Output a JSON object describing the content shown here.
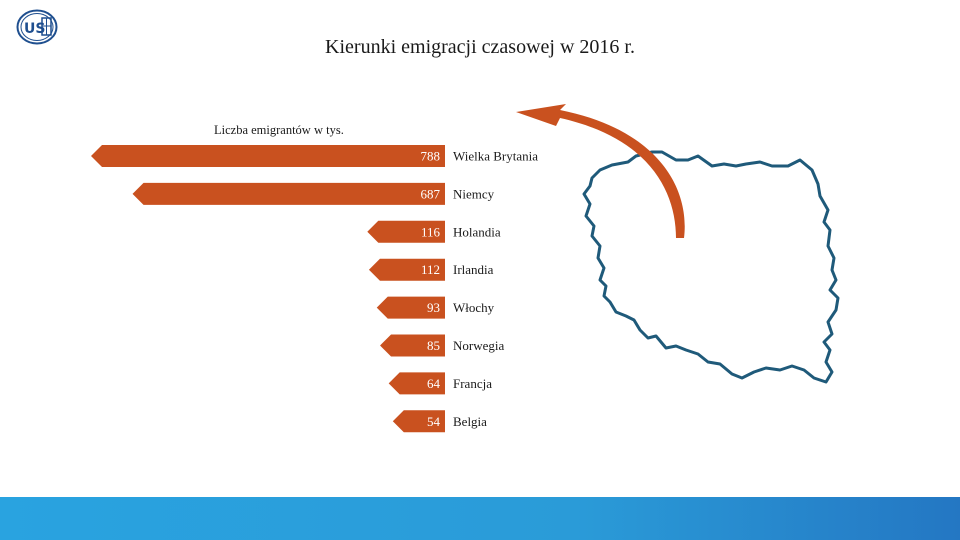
{
  "logo": {
    "name": "us-logo-icon",
    "color": "#1f4f8f"
  },
  "title": "Kierunki emigracji czasowej w 2016 r.",
  "chart_data": {
    "type": "bar",
    "orientation": "horizontal",
    "title": "Kierunki emigracji czasowej w 2016 r.",
    "unit_label": "Liczba emigrantów w tys.",
    "categories": [
      "Wielka Brytania",
      "Niemcy",
      "Holandia",
      "Irlandia",
      "Włochy",
      "Norwegia",
      "Francja",
      "Belgia"
    ],
    "values": [
      788,
      687,
      116,
      112,
      93,
      85,
      64,
      54
    ],
    "bar_color": "#c9511f",
    "value_label_color": "#ffffff"
  },
  "map": {
    "name": "poland-outline",
    "outline_color": "#1f5a7a",
    "arrow_color": "#c9511f"
  },
  "footer": {
    "color": "#2a9bd8"
  }
}
